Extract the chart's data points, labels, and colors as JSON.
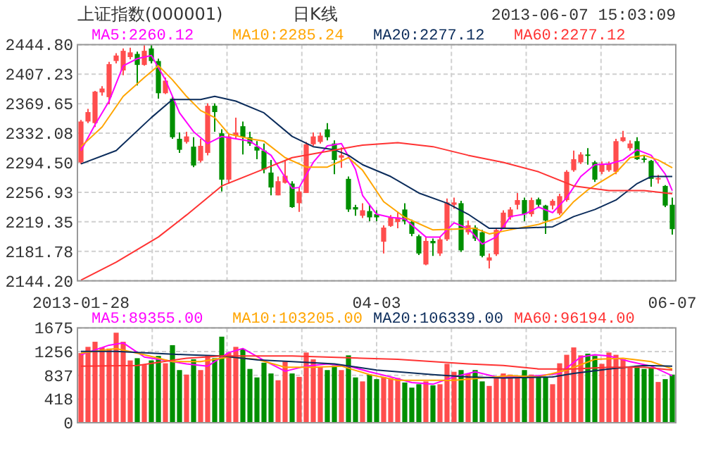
{
  "chart_data": [
    {
      "type": "candlestick",
      "title": "上证指数(000001)",
      "subtitle": "日K线",
      "annotations": [
        "2013-06-07 15:03:09"
      ],
      "categories": [
        "2013-01-28",
        null,
        null,
        null,
        null,
        null,
        null,
        null,
        null,
        null,
        null,
        null,
        null,
        null,
        null,
        null,
        null,
        null,
        null,
        null,
        null,
        null,
        null,
        null,
        null,
        null,
        null,
        null,
        null,
        null,
        null,
        null,
        null,
        null,
        null,
        null,
        null,
        null,
        null,
        null,
        null,
        null,
        "04-03",
        null,
        null,
        null,
        null,
        null,
        null,
        null,
        null,
        null,
        null,
        null,
        null,
        null,
        null,
        null,
        null,
        null,
        null,
        null,
        null,
        null,
        null,
        null,
        null,
        null,
        null,
        null,
        null,
        null,
        null,
        null,
        null,
        null,
        null,
        null,
        null,
        null,
        null,
        null,
        null,
        null,
        "06-07"
      ],
      "ylim": [
        2144.2,
        2444.8
      ],
      "yticks": [
        {
          "value": 2144.2,
          "label": "2144.20"
        },
        {
          "value": 2181.78,
          "label": "2181.78"
        },
        {
          "value": 2219.35,
          "label": "2219.35"
        },
        {
          "value": 2256.93,
          "label": "2256.93"
        },
        {
          "value": 2294.5,
          "label": "2294.50"
        },
        {
          "value": 2332.08,
          "label": "2332.08"
        },
        {
          "value": 2369.65,
          "label": "2369.65"
        },
        {
          "value": 2407.23,
          "label": "2407.23"
        },
        {
          "value": 2444.8,
          "label": "2444.80"
        }
      ],
      "grid": true,
      "legend": "top",
      "ohlc": [
        [
          2295,
          2349,
          2293,
          2347
        ],
        [
          2347,
          2363,
          2345,
          2359
        ],
        [
          2345,
          2386,
          2340,
          2385
        ],
        [
          2384,
          2392,
          2380,
          2389
        ],
        [
          2378,
          2423,
          2369,
          2420
        ],
        [
          2424,
          2434,
          2421,
          2431
        ],
        [
          2412,
          2440,
          2406,
          2437
        ],
        [
          2429,
          2441,
          2426,
          2435
        ],
        [
          2433,
          2436,
          2393,
          2419
        ],
        [
          2419,
          2444,
          2418,
          2437
        ],
        [
          2440,
          2444,
          2421,
          2424
        ],
        [
          2424,
          2427,
          2376,
          2383
        ],
        [
          2383,
          2403,
          2382,
          2399
        ],
        [
          2376,
          2379,
          2325,
          2327
        ],
        [
          2325,
          2333,
          2307,
          2311
        ],
        [
          2321,
          2334,
          2319,
          2328
        ],
        [
          2315,
          2327,
          2289,
          2291
        ],
        [
          2297,
          2325,
          2295,
          2316
        ],
        [
          2307,
          2370,
          2304,
          2367
        ],
        [
          2367,
          2370,
          2334,
          2359
        ],
        [
          2332,
          2337,
          2258,
          2273
        ],
        [
          2273,
          2331,
          2268,
          2328
        ],
        [
          2329,
          2352,
          2325,
          2333
        ],
        [
          2341,
          2347,
          2305,
          2327
        ],
        [
          2327,
          2334,
          2316,
          2319
        ],
        [
          2315,
          2322,
          2299,
          2310
        ],
        [
          2310,
          2319,
          2281,
          2286
        ],
        [
          2282,
          2298,
          2253,
          2263
        ],
        [
          2253,
          2277,
          2253,
          2271
        ],
        [
          2269,
          2298,
          2268,
          2278
        ],
        [
          2268,
          2271,
          2237,
          2238
        ],
        [
          2243,
          2263,
          2232,
          2258
        ],
        [
          2256,
          2321,
          2256,
          2318
        ],
        [
          2318,
          2333,
          2316,
          2328
        ],
        [
          2321,
          2333,
          2319,
          2329
        ],
        [
          2337,
          2345,
          2323,
          2327
        ],
        [
          2319,
          2323,
          2280,
          2298
        ],
        [
          2301,
          2314,
          2288,
          2304
        ],
        [
          2274,
          2277,
          2232,
          2235
        ],
        [
          2238,
          2241,
          2227,
          2235
        ],
        [
          2227,
          2243,
          2224,
          2234
        ],
        [
          2233,
          2241,
          2220,
          2225
        ],
        [
          2229,
          2234,
          2220,
          2225
        ],
        [
          2194,
          2215,
          2179,
          2212
        ],
        [
          2214,
          2228,
          2213,
          2225
        ],
        [
          2219,
          2232,
          2211,
          2225
        ],
        [
          2235,
          2243,
          2216,
          2220
        ],
        [
          2219,
          2222,
          2201,
          2204
        ],
        [
          2201,
          2203,
          2177,
          2179
        ],
        [
          2165,
          2200,
          2164,
          2195
        ],
        [
          2195,
          2198,
          2176,
          2192
        ],
        [
          2179,
          2200,
          2176,
          2197
        ],
        [
          2197,
          2249,
          2195,
          2244
        ],
        [
          2241,
          2250,
          2236,
          2244
        ],
        [
          2243,
          2246,
          2181,
          2183
        ],
        [
          2206,
          2221,
          2203,
          2215
        ],
        [
          2212,
          2215,
          2195,
          2198
        ],
        [
          2206,
          2209,
          2174,
          2176
        ],
        [
          2170,
          2179,
          2160,
          2174
        ],
        [
          2178,
          2212,
          2176,
          2209
        ],
        [
          2212,
          2234,
          2210,
          2231
        ],
        [
          2225,
          2238,
          2222,
          2235
        ],
        [
          2241,
          2256,
          2235,
          2247
        ],
        [
          2247,
          2250,
          2220,
          2229
        ],
        [
          2229,
          2250,
          2226,
          2247
        ],
        [
          2248,
          2250,
          2238,
          2241
        ],
        [
          2240,
          2241,
          2204,
          2221
        ],
        [
          2240,
          2248,
          2235,
          2246
        ],
        [
          2230,
          2255,
          2228,
          2252
        ],
        [
          2247,
          2285,
          2245,
          2283
        ],
        [
          2285,
          2310,
          2283,
          2299
        ],
        [
          2295,
          2308,
          2293,
          2305
        ],
        [
          2305,
          2313,
          2292,
          2304
        ],
        [
          2295,
          2297,
          2270,
          2273
        ],
        [
          2283,
          2296,
          2280,
          2293
        ],
        [
          2285,
          2296,
          2283,
          2293
        ],
        [
          2283,
          2325,
          2280,
          2322
        ],
        [
          2322,
          2335,
          2321,
          2327
        ],
        [
          2313,
          2323,
          2310,
          2319
        ],
        [
          2322,
          2327,
          2298,
          2299
        ],
        [
          2300,
          2304,
          2295,
          2299
        ],
        [
          2297,
          2298,
          2264,
          2274
        ],
        [
          2274,
          2279,
          2268,
          2275
        ],
        [
          2265,
          2266,
          2238,
          2240
        ],
        [
          2241,
          2250,
          2203,
          2210
        ]
      ],
      "colors": [
        "#ff4d4d",
        "#ff4d4d",
        "#ff4d4d",
        "#ff4d4d",
        "#ff4d4d",
        "#ff4d4d",
        "#ff4d4d",
        "#ff4d4d",
        "#008f00",
        "#ff4d4d",
        "#008f00",
        "#008f00",
        "#ff4d4d",
        "#008f00",
        "#008f00",
        "#ff4d4d",
        "#008f00",
        "#ff4d4d",
        "#ff4d4d",
        "#008f00",
        "#008f00",
        "#ff4d4d",
        "#ff4d4d",
        "#008f00",
        "#008f00",
        "#008f00",
        "#008f00",
        "#008f00",
        "#ff4d4d",
        "#ff4d4d",
        "#008f00",
        "#ff4d4d",
        "#ff4d4d",
        "#ff4d4d",
        "#ff4d4d",
        "#008f00",
        "#008f00",
        "#ff4d4d",
        "#008f00",
        "#008f00",
        "#ff4d4d",
        "#008f00",
        "#008f00",
        "#ff4d4d",
        "#ff4d4d",
        "#ff4d4d",
        "#008f00",
        "#008f00",
        "#008f00",
        "#ff4d4d",
        "#008f00",
        "#ff4d4d",
        "#ff4d4d",
        "#ff4d4d",
        "#008f00",
        "#ff4d4d",
        "#008f00",
        "#008f00",
        "#ff4d4d",
        "#ff4d4d",
        "#ff4d4d",
        "#ff4d4d",
        "#ff4d4d",
        "#008f00",
        "#ff4d4d",
        "#008f00",
        "#008f00",
        "#ff4d4d",
        "#ff4d4d",
        "#ff4d4d",
        "#ff4d4d",
        "#ff4d4d",
        "#008f00",
        "#008f00",
        "#ff4d4d",
        "#ff4d4d",
        "#ff4d4d",
        "#ff4d4d",
        "#ff4d4d",
        "#008f00",
        "#008f00",
        "#008f00",
        "#ff4d4d",
        "#008f00",
        "#008f00"
      ],
      "series": [
        {
          "name": "MA5:2260.12",
          "type": "line",
          "color": "#ff00ff",
          "values": [
            2310,
            null,
            2343,
            null,
            2373,
            null,
            2418,
            null,
            2427,
            null,
            2431,
            null,
            2400,
            null,
            2358,
            null,
            2334,
            null,
            2319,
            null,
            2328,
            null,
            2325,
            null,
            2322,
            null,
            null,
            2304,
            null,
            null,
            2262,
            2263,
            null,
            2295,
            null,
            2316,
            null,
            2319,
            null,
            2286,
            2253,
            null,
            2229,
            null,
            2225,
            null,
            2223,
            null,
            null,
            2200,
            null,
            2200,
            null,
            2218,
            null,
            2211,
            null,
            2191,
            null,
            2200,
            null,
            2226,
            null,
            2229,
            null,
            2238,
            null,
            2231,
            null,
            2250,
            null,
            2277,
            null,
            2292,
            null,
            2293,
            null,
            2298,
            null,
            2311,
            null,
            2304,
            null,
            2280,
            2259
          ]
        },
        {
          "name": "MA10:2285.24",
          "type": "line",
          "color": "#ffa500",
          "values": [
            2315,
            null,
            null,
            2340,
            null,
            null,
            2379,
            null,
            null,
            2403,
            null,
            2418,
            null,
            2400,
            null,
            2379,
            null,
            2361,
            null,
            2352,
            null,
            2331,
            null,
            null,
            2325,
            null,
            2322,
            null,
            null,
            2301,
            null,
            null,
            2289,
            null,
            null,
            2289,
            null,
            null,
            2301,
            null,
            2285,
            null,
            null,
            2245,
            null,
            null,
            2225,
            null,
            null,
            null,
            2209,
            null,
            null,
            2210,
            null,
            null,
            2211,
            null,
            2204,
            null,
            null,
            null,
            2211,
            null,
            null,
            2216,
            null,
            null,
            2225,
            null,
            2245,
            null,
            2260,
            null,
            2271,
            null,
            2282,
            null,
            2301,
            null,
            2304,
            null,
            2298,
            null,
            2288
          ]
        },
        {
          "name": "MA20:2277.12",
          "type": "line",
          "color": "#0b2c5b",
          "values": [
            2293,
            null,
            null,
            null,
            null,
            2310,
            null,
            null,
            null,
            null,
            2352,
            null,
            null,
            2375,
            null,
            null,
            null,
            2375,
            null,
            2379,
            null,
            null,
            2373,
            null,
            null,
            null,
            2358,
            null,
            null,
            null,
            2328,
            null,
            null,
            2315,
            null,
            null,
            2311,
            null,
            2304,
            null,
            2292,
            null,
            null,
            null,
            2277,
            null,
            null,
            null,
            2256,
            null,
            null,
            null,
            2243,
            null,
            null,
            2229,
            null,
            null,
            2211,
            null,
            null,
            null,
            2211,
            null,
            null,
            null,
            null,
            2213,
            null,
            null,
            2226,
            null,
            null,
            2235,
            null,
            null,
            2247,
            null,
            null,
            2268,
            null,
            2277,
            null,
            null,
            2277
          ]
        },
        {
          "name": "MA60:2277.12",
          "type": "line",
          "color": "#ff3333",
          "values": [
            2145,
            null,
            null,
            null,
            null,
            2168,
            null,
            null,
            null,
            null,
            null,
            2200,
            null,
            null,
            null,
            2228,
            null,
            null,
            null,
            null,
            2265,
            null,
            null,
            null,
            null,
            2283,
            null,
            null,
            null,
            null,
            2301,
            null,
            null,
            null,
            null,
            2309,
            null,
            null,
            null,
            null,
            2317,
            null,
            null,
            null,
            null,
            2320,
            null,
            null,
            null,
            null,
            2315,
            null,
            null,
            null,
            null,
            2304,
            null,
            null,
            null,
            null,
            2295,
            null,
            null,
            null,
            null,
            2283,
            null,
            null,
            null,
            null,
            2265,
            null,
            null,
            null,
            null,
            2259,
            null,
            null,
            null,
            null,
            2259,
            null,
            null,
            null,
            2255
          ]
        }
      ]
    },
    {
      "type": "bar",
      "categories": [
        null,
        null,
        null,
        null,
        null,
        null,
        null,
        null,
        null,
        null,
        null,
        null,
        null,
        null,
        null,
        null,
        null,
        null,
        null,
        null,
        null,
        null,
        null,
        null,
        null,
        null,
        null,
        null,
        null,
        null,
        null,
        null,
        null,
        null,
        null,
        null,
        null,
        null,
        null,
        null,
        null,
        null,
        null,
        null,
        null,
        null,
        null,
        null,
        null,
        null,
        null,
        null,
        null,
        null,
        null,
        null,
        null,
        null,
        null,
        null,
        null,
        null,
        null,
        null,
        null,
        null,
        null,
        null,
        null,
        null,
        null,
        null,
        null,
        null,
        null,
        null,
        null,
        null,
        null,
        null,
        null,
        null,
        null,
        null,
        null
      ],
      "ylim": [
        0,
        1675
      ],
      "yticks": [
        0,
        418,
        837,
        1256,
        1675
      ],
      "grid": true,
      "legend": "top",
      "values": [
        1230,
        1340,
        1430,
        1330,
        1310,
        1590,
        1430,
        1100,
        1140,
        1020,
        1100,
        1180,
        1050,
        1370,
        930,
        850,
        1120,
        930,
        1190,
        1140,
        1520,
        1240,
        1340,
        1300,
        950,
        800,
        1060,
        870,
        750,
        1080,
        870,
        810,
        1240,
        1120,
        980,
        930,
        1010,
        930,
        1190,
        800,
        730,
        850,
        770,
        810,
        790,
        790,
        710,
        620,
        680,
        730,
        660,
        680,
        1040,
        900,
        930,
        870,
        930,
        730,
        650,
        810,
        870,
        850,
        810,
        930,
        850,
        830,
        810,
        680,
        1050,
        1200,
        1330,
        1190,
        1220,
        1180,
        1040,
        1240,
        1200,
        1120,
        970,
        1010,
        950,
        970,
        720,
        770,
        850
      ],
      "colors": [
        "#ff4d4d",
        "#ff4d4d",
        "#ff4d4d",
        "#ff4d4d",
        "#ff4d4d",
        "#ff4d4d",
        "#ff4d4d",
        "#ff4d4d",
        "#008f00",
        "#ff4d4d",
        "#008f00",
        "#008f00",
        "#ff4d4d",
        "#008f00",
        "#008f00",
        "#ff4d4d",
        "#008f00",
        "#ff4d4d",
        "#ff4d4d",
        "#008f00",
        "#008f00",
        "#ff4d4d",
        "#ff4d4d",
        "#008f00",
        "#008f00",
        "#008f00",
        "#008f00",
        "#008f00",
        "#ff4d4d",
        "#ff4d4d",
        "#008f00",
        "#ff4d4d",
        "#ff4d4d",
        "#ff4d4d",
        "#ff4d4d",
        "#008f00",
        "#008f00",
        "#ff4d4d",
        "#008f00",
        "#008f00",
        "#ff4d4d",
        "#008f00",
        "#008f00",
        "#ff4d4d",
        "#ff4d4d",
        "#ff4d4d",
        "#008f00",
        "#008f00",
        "#008f00",
        "#ff4d4d",
        "#008f00",
        "#ff4d4d",
        "#ff4d4d",
        "#ff4d4d",
        "#008f00",
        "#ff4d4d",
        "#008f00",
        "#008f00",
        "#ff4d4d",
        "#ff4d4d",
        "#ff4d4d",
        "#ff4d4d",
        "#ff4d4d",
        "#008f00",
        "#ff4d4d",
        "#008f00",
        "#008f00",
        "#ff4d4d",
        "#ff4d4d",
        "#ff4d4d",
        "#ff4d4d",
        "#ff4d4d",
        "#008f00",
        "#008f00",
        "#ff4d4d",
        "#ff4d4d",
        "#ff4d4d",
        "#ff4d4d",
        "#ff4d4d",
        "#008f00",
        "#008f00",
        "#008f00",
        "#ff4d4d",
        "#008f00",
        "#008f00"
      ],
      "series": [
        {
          "name": "MA5:89355.00",
          "type": "line",
          "color": "#ff00ff",
          "values": [
            1200,
            null,
            null,
            null,
            1370,
            null,
            1410,
            null,
            null,
            1160,
            null,
            null,
            1100,
            null,
            null,
            1040,
            null,
            null,
            1000,
            null,
            null,
            1240,
            null,
            1310,
            null,
            null,
            1100,
            null,
            null,
            910,
            null,
            null,
            1000,
            null,
            null,
            1040,
            null,
            null,
            1000,
            null,
            null,
            900,
            null,
            null,
            810,
            null,
            null,
            710,
            null,
            null,
            680,
            null,
            null,
            810,
            null,
            null,
            900,
            null,
            null,
            810,
            null,
            null,
            810,
            null,
            null,
            830,
            null,
            null,
            870,
            null,
            null,
            1160,
            null,
            1200,
            null,
            1180,
            null,
            null,
            1080,
            null,
            null,
            1000,
            null,
            null,
            830
          ]
        },
        {
          "name": "MA10:103205.00",
          "type": "line",
          "color": "#ffa500",
          "values": [
            1230,
            null,
            null,
            null,
            null,
            1310,
            null,
            null,
            null,
            1200,
            null,
            null,
            null,
            1080,
            null,
            null,
            null,
            1080,
            null,
            null,
            null,
            1160,
            null,
            null,
            null,
            1120,
            null,
            null,
            null,
            980,
            null,
            null,
            null,
            980,
            null,
            null,
            null,
            1000,
            null,
            null,
            null,
            850,
            null,
            null,
            null,
            750,
            null,
            null,
            null,
            750,
            null,
            null,
            null,
            750,
            null,
            null,
            null,
            790,
            null,
            null,
            null,
            830,
            null,
            null,
            null,
            810,
            null,
            null,
            null,
            930,
            null,
            null,
            null,
            1120,
            null,
            null,
            null,
            1140,
            null,
            null,
            null,
            1080,
            null,
            null,
            950
          ]
        },
        {
          "name": "MA20:106339.00",
          "type": "line",
          "color": "#0b2c5b",
          "values": [
            1260,
            null,
            null,
            null,
            null,
            1260,
            null,
            null,
            null,
            null,
            1230,
            null,
            null,
            null,
            null,
            1200,
            null,
            null,
            null,
            null,
            1180,
            null,
            null,
            null,
            null,
            1110,
            null,
            null,
            null,
            null,
            1080,
            null,
            null,
            null,
            null,
            null,
            1040,
            null,
            null,
            null,
            null,
            null,
            930,
            null,
            null,
            null,
            null,
            null,
            null,
            null,
            850,
            null,
            null,
            null,
            null,
            810,
            null,
            null,
            null,
            null,
            790,
            null,
            null,
            null,
            null,
            null,
            null,
            810,
            null,
            null,
            870,
            null,
            null,
            null,
            null,
            950,
            null,
            null,
            null,
            null,
            1010,
            null,
            null,
            null,
            1000
          ]
        },
        {
          "name": "MA60:96194.00",
          "type": "line",
          "color": "#ff3333",
          "values": [
            1000,
            null,
            null,
            null,
            null,
            null,
            null,
            null,
            1010,
            null,
            null,
            null,
            null,
            null,
            null,
            1140,
            null,
            null,
            null,
            null,
            1180,
            null,
            null,
            null,
            null,
            null,
            null,
            null,
            null,
            null,
            1180,
            null,
            null,
            null,
            null,
            null,
            null,
            null,
            null,
            null,
            1140,
            null,
            null,
            null,
            null,
            1120,
            null,
            null,
            null,
            null,
            null,
            null,
            null,
            null,
            null,
            1040,
            null,
            null,
            null,
            null,
            1010,
            null,
            null,
            null,
            null,
            950,
            null,
            null,
            null,
            null,
            950,
            null,
            null,
            null,
            null,
            980,
            null,
            null,
            null,
            null,
            980,
            null,
            null,
            null,
            930
          ]
        }
      ]
    }
  ]
}
